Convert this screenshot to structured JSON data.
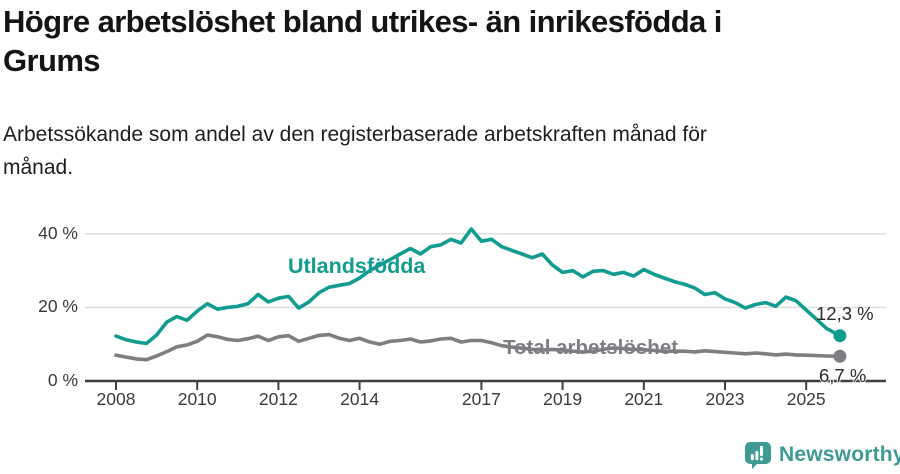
{
  "title": {
    "line1": "Högre arbetslöshet bland utrikes- än inrikesfödda i",
    "line2": "Grums"
  },
  "subtitle": {
    "line1": "Arbetssökande som andel av den registerbaserade arbetskraften månad för",
    "line2": "månad."
  },
  "chart_data": {
    "type": "line",
    "unit": "%",
    "x_range": [
      2008,
      2026
    ],
    "ylim": [
      0,
      44
    ],
    "grid": "horizontal",
    "x_ticks": {
      "values": [
        2008,
        2010,
        2012,
        2014,
        2017,
        2019,
        2021,
        2023,
        2025
      ],
      "labels": [
        "2008",
        "2010",
        "2012",
        "2014",
        "2017",
        "2019",
        "2021",
        "2023",
        "2025"
      ]
    },
    "y_ticks": {
      "values": [
        0,
        20,
        40
      ],
      "labels": [
        "0 %",
        "20 %",
        "40 %"
      ]
    },
    "x": [
      2008.0,
      2008.25,
      2008.5,
      2008.75,
      2009.0,
      2009.25,
      2009.5,
      2009.75,
      2010.0,
      2010.25,
      2010.5,
      2010.75,
      2011.0,
      2011.25,
      2011.5,
      2011.75,
      2012.0,
      2012.25,
      2012.5,
      2012.75,
      2013.0,
      2013.25,
      2013.5,
      2013.75,
      2014.0,
      2014.25,
      2014.5,
      2014.75,
      2015.0,
      2015.25,
      2015.5,
      2015.75,
      2016.0,
      2016.25,
      2016.5,
      2016.75,
      2017.0,
      2017.25,
      2017.5,
      2017.75,
      2018.0,
      2018.25,
      2018.5,
      2018.75,
      2019.0,
      2019.25,
      2019.5,
      2019.75,
      2020.0,
      2020.25,
      2020.5,
      2020.75,
      2021.0,
      2021.25,
      2021.5,
      2021.75,
      2022.0,
      2022.25,
      2022.5,
      2022.75,
      2023.0,
      2023.25,
      2023.5,
      2023.75,
      2024.0,
      2024.25,
      2024.5,
      2024.75,
      2025.0,
      2025.25,
      2025.5,
      2025.83
    ],
    "series": [
      {
        "name": "Utlandsfödda",
        "color": "#119c8f",
        "end_label": "12,3 %",
        "end_value": 12.3,
        "values": [
          12.2,
          11.2,
          10.6,
          10.2,
          12.5,
          16.0,
          17.5,
          16.5,
          19.0,
          21.0,
          19.5,
          20.0,
          20.3,
          21.0,
          23.5,
          21.5,
          22.5,
          23.0,
          19.8,
          21.5,
          24.0,
          25.5,
          26.0,
          26.5,
          28.0,
          30.0,
          31.5,
          33.0,
          34.5,
          36.0,
          34.5,
          36.5,
          37.0,
          38.5,
          37.5,
          41.3,
          38.0,
          38.5,
          36.5,
          35.5,
          34.5,
          33.5,
          34.5,
          31.5,
          29.5,
          30.0,
          28.3,
          29.8,
          30.0,
          29.0,
          29.5,
          28.5,
          30.3,
          29.0,
          28.0,
          27.0,
          26.3,
          25.3,
          23.5,
          24.0,
          22.3,
          21.3,
          19.8,
          20.8,
          21.3,
          20.3,
          22.8,
          21.8,
          19.3,
          16.8,
          14.3,
          12.3
        ]
      },
      {
        "name": "Total arbetslöshet",
        "color": "#7e7e82",
        "end_label": "6,7 %",
        "end_value": 6.7,
        "values": [
          7.0,
          6.5,
          6.0,
          5.8,
          6.8,
          8.0,
          9.3,
          9.8,
          10.8,
          12.5,
          12.0,
          11.3,
          11.0,
          11.5,
          12.2,
          11.0,
          12.0,
          12.3,
          10.8,
          11.6,
          12.4,
          12.6,
          11.6,
          11.0,
          11.6,
          10.6,
          10.0,
          10.8,
          11.0,
          11.4,
          10.6,
          10.9,
          11.4,
          11.6,
          10.6,
          11.0,
          11.0,
          10.4,
          9.6,
          9.2,
          8.9,
          8.6,
          8.4,
          8.6,
          8.4,
          8.1,
          7.9,
          8.1,
          8.6,
          9.0,
          8.8,
          8.6,
          8.5,
          8.3,
          8.1,
          8.1,
          8.1,
          7.9,
          8.2,
          8.0,
          7.8,
          7.6,
          7.4,
          7.6,
          7.4,
          7.1,
          7.3,
          7.1,
          7.0,
          6.9,
          6.8,
          6.7
        ]
      }
    ],
    "styles": {
      "gridline_color": "#dcdcdc",
      "axis_color": "#3f3f3f",
      "tick_label_color": "#3a3a3a",
      "end_label_color": "#2b2b2b"
    }
  },
  "footer": {
    "brand": "Newsworthy",
    "brand_color": "#3E9B94",
    "logo_icon": "newsworthy-chart-bubble-icon"
  }
}
